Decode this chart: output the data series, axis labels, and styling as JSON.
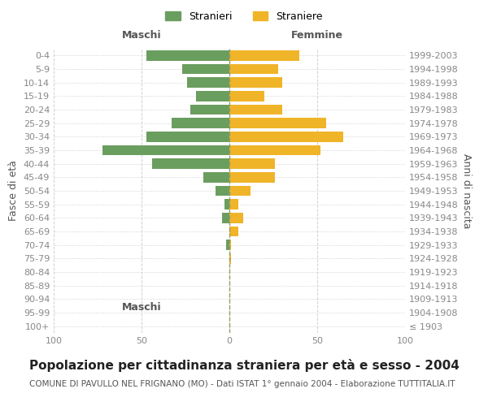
{
  "age_groups": [
    "100+",
    "95-99",
    "90-94",
    "85-89",
    "80-84",
    "75-79",
    "70-74",
    "65-69",
    "60-64",
    "55-59",
    "50-54",
    "45-49",
    "40-44",
    "35-39",
    "30-34",
    "25-29",
    "20-24",
    "15-19",
    "10-14",
    "5-9",
    "0-4"
  ],
  "birth_years": [
    "≤ 1903",
    "1904-1908",
    "1909-1913",
    "1914-1918",
    "1919-1923",
    "1924-1928",
    "1929-1933",
    "1934-1938",
    "1939-1943",
    "1944-1948",
    "1949-1953",
    "1954-1958",
    "1959-1963",
    "1964-1968",
    "1969-1973",
    "1974-1978",
    "1979-1983",
    "1984-1988",
    "1989-1993",
    "1994-1998",
    "1999-2003"
  ],
  "maschi": [
    0,
    0,
    0,
    0,
    0,
    0,
    2,
    0,
    4,
    3,
    8,
    15,
    44,
    72,
    47,
    33,
    22,
    19,
    24,
    27,
    47
  ],
  "femmine": [
    0,
    0,
    0,
    0,
    0,
    1,
    1,
    5,
    8,
    5,
    12,
    26,
    26,
    52,
    65,
    55,
    30,
    20,
    30,
    28,
    40
  ],
  "maschi_color": "#6a9e5f",
  "femmine_color": "#f0b429",
  "bg_color": "#ffffff",
  "grid_color": "#cccccc",
  "title": "Popolazione per cittadinanza straniera per età e sesso - 2004",
  "subtitle": "COMUNE DI PAVULLO NEL FRIGNANO (MO) - Dati ISTAT 1° gennaio 2004 - Elaborazione TUTTITALIA.IT",
  "ylabel_left": "Fasce di età",
  "ylabel_right": "Anni di nascita",
  "xlabel_left": "Maschi",
  "xlabel_right": "Femmine",
  "legend_maschi": "Stranieri",
  "legend_femmine": "Straniere",
  "xlim": 100,
  "title_fontsize": 11,
  "subtitle_fontsize": 7.5,
  "axis_label_fontsize": 9,
  "tick_fontsize": 8
}
